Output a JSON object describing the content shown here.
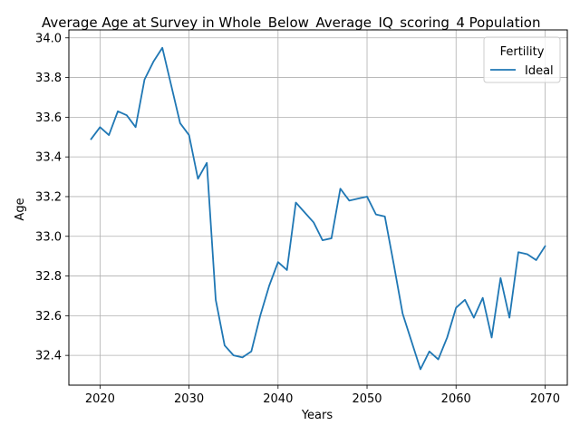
{
  "chart_data": {
    "type": "line",
    "title": "Average Age at Survey in Whole_Below_Average_IQ_scoring_4 Population",
    "xlabel": "Years",
    "ylabel": "Age",
    "xlim": [
      2016.5,
      2072.5
    ],
    "ylim": [
      32.25,
      34.04
    ],
    "xticks": [
      2020,
      2030,
      2040,
      2050,
      2060,
      2070
    ],
    "yticks": [
      32.4,
      32.6,
      32.8,
      33.0,
      33.2,
      33.4,
      33.6,
      33.8,
      34.0
    ],
    "ytick_labels": [
      "32.4",
      "32.6",
      "32.8",
      "33.0",
      "33.2",
      "33.4",
      "33.6",
      "33.8",
      "34.0"
    ],
    "grid": true,
    "legend": {
      "title": "Fertility",
      "placement": "top-right"
    },
    "series": [
      {
        "name": "Ideal",
        "color": "#1f77b4",
        "x": [
          2019,
          2020,
          2021,
          2022,
          2023,
          2024,
          2025,
          2026,
          2027,
          2028,
          2029,
          2030,
          2031,
          2032,
          2033,
          2034,
          2035,
          2036,
          2037,
          2038,
          2039,
          2040,
          2041,
          2042,
          2043,
          2044,
          2045,
          2046,
          2047,
          2048,
          2049,
          2050,
          2051,
          2052,
          2053,
          2054,
          2055,
          2056,
          2057,
          2058,
          2059,
          2060,
          2061,
          2062,
          2063,
          2064,
          2065,
          2066,
          2067,
          2068,
          2069,
          2070
        ],
        "y": [
          33.49,
          33.55,
          33.51,
          33.63,
          33.61,
          33.55,
          33.79,
          33.88,
          33.95,
          33.76,
          33.57,
          33.51,
          33.29,
          33.37,
          32.68,
          32.45,
          32.4,
          32.39,
          32.42,
          32.6,
          32.75,
          32.87,
          32.83,
          33.17,
          33.12,
          33.07,
          32.98,
          32.99,
          33.24,
          33.18,
          33.19,
          33.2,
          33.11,
          33.1,
          32.86,
          32.61,
          32.47,
          32.33,
          32.42,
          32.38,
          32.49,
          32.64,
          32.68,
          32.59,
          32.69,
          32.49,
          32.79,
          32.59,
          32.92,
          32.91,
          32.88,
          32.95
        ]
      }
    ]
  }
}
